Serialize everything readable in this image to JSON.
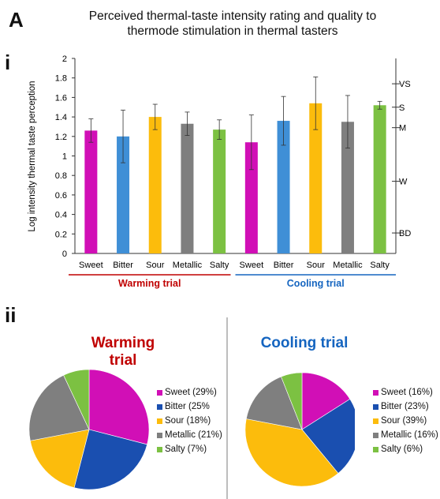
{
  "panel_label": "A",
  "title_line1": "Perceived thermal-taste intensity rating and quality to",
  "title_line2": "thermode stimulation in thermal tasters",
  "sub_i": "i",
  "sub_ii": "ii",
  "colors": {
    "Sweet": "#d10fb6",
    "Bitter": "#3f8fd6",
    "Sour": "#fcbc0c",
    "Metallic": "#7f7f7f",
    "Salty": "#7cc142",
    "pie_Sweet": "#d10fb6",
    "pie_Bitter": "#1a4fb0",
    "pie_Sour": "#fcbc0c",
    "pie_Metallic": "#7f7f7f",
    "pie_Salty": "#7cc142",
    "warming": "#c00000",
    "cooling": "#1565c0"
  },
  "chart_data": [
    {
      "type": "bar",
      "ylabel": "Log intensity thermal taste perception",
      "ylim": [
        0,
        2
      ],
      "yticks": [
        "0",
        "0.2",
        "0.4",
        "0.6",
        "0.8",
        "1",
        "1.2",
        "1.4",
        "1.6",
        "1.8",
        "2"
      ],
      "categories": [
        "Sweet",
        "Bitter",
        "Sour",
        "Metallic",
        "Salty",
        "Sweet",
        "Bitter",
        "Sour",
        "Metallic",
        "Salty"
      ],
      "values": [
        1.26,
        1.2,
        1.4,
        1.33,
        1.27,
        1.14,
        1.36,
        1.54,
        1.35,
        1.52
      ],
      "errors": [
        0.12,
        0.27,
        0.13,
        0.12,
        0.1,
        0.28,
        0.25,
        0.27,
        0.27,
        0.04
      ],
      "groups": [
        {
          "label": "Warming trial",
          "start": 0,
          "end": 4
        },
        {
          "label": "Cooling trial",
          "start": 5,
          "end": 9
        }
      ],
      "right_axis": [
        {
          "label": "VS",
          "value": 1.74
        },
        {
          "label": "S",
          "value": 1.5
        },
        {
          "label": "M",
          "value": 1.29
        },
        {
          "label": "W",
          "value": 0.74
        },
        {
          "label": "BD",
          "value": 0.21
        }
      ]
    },
    {
      "type": "pie",
      "title": "Warming trial",
      "labels": [
        "Sweet (29%)",
        "Bitter (25%",
        "Sour (18%)",
        "Metallic (21%)",
        "Salty (7%)"
      ],
      "categories": [
        "Sweet",
        "Bitter",
        "Sour",
        "Metallic",
        "Salty"
      ],
      "values": [
        29,
        25,
        18,
        21,
        7
      ]
    },
    {
      "type": "pie",
      "title": "Cooling trial",
      "labels": [
        "Sweet (16%)",
        "Bitter (23%)",
        "Sour (39%)",
        "Metallic (16%)",
        "Salty (6%)"
      ],
      "categories": [
        "Sweet",
        "Bitter",
        "Sour",
        "Metallic",
        "Salty"
      ],
      "values": [
        16,
        23,
        39,
        16,
        6
      ]
    }
  ]
}
